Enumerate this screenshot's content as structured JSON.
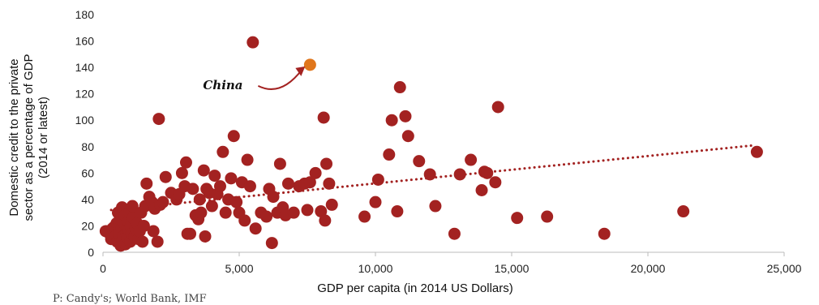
{
  "chart_data": {
    "type": "scatter",
    "xlabel": "GDP per capita (in 2014 US Dollars)",
    "ylabel_lines": [
      "Domestic credit to the private",
      "sector as a percentage of GDP",
      "(2014 or latest)"
    ],
    "xlim": [
      0,
      25000
    ],
    "ylim": [
      0,
      180
    ],
    "x_ticks": [
      0,
      5000,
      10000,
      15000,
      20000,
      25000
    ],
    "x_tick_labels": [
      "0",
      "5,000",
      "10,000",
      "15,000",
      "20,000",
      "25,000"
    ],
    "y_ticks": [
      0,
      20,
      40,
      60,
      80,
      100,
      120,
      140,
      160,
      180
    ],
    "y_tick_labels": [
      "0",
      "20",
      "40",
      "60",
      "80",
      "100",
      "120",
      "140",
      "160",
      "180"
    ],
    "grid": false,
    "colors": {
      "points": "#a32221",
      "highlight": "#e0761b",
      "trendline": "#a32221",
      "axis": "#bbbbbb"
    },
    "trendline": {
      "style": "dotted",
      "from": [
        300,
        32
      ],
      "to": [
        23900,
        81
      ]
    },
    "highlight": {
      "label": "China",
      "x": 7600,
      "y": 142
    },
    "source": "P: Candy's; World Bank, IMF",
    "points": [
      [
        100,
        16
      ],
      [
        200,
        15
      ],
      [
        300,
        10
      ],
      [
        350,
        18
      ],
      [
        400,
        19
      ],
      [
        450,
        12
      ],
      [
        500,
        22
      ],
      [
        520,
        8
      ],
      [
        550,
        30
      ],
      [
        580,
        20
      ],
      [
        600,
        14
      ],
      [
        620,
        25
      ],
      [
        650,
        5
      ],
      [
        680,
        18
      ],
      [
        700,
        34
      ],
      [
        720,
        9
      ],
      [
        750,
        12
      ],
      [
        780,
        22
      ],
      [
        800,
        28
      ],
      [
        820,
        6
      ],
      [
        850,
        15
      ],
      [
        880,
        18
      ],
      [
        900,
        11
      ],
      [
        930,
        23
      ],
      [
        950,
        17
      ],
      [
        980,
        30
      ],
      [
        1000,
        8
      ],
      [
        1020,
        20
      ],
      [
        1050,
        14
      ],
      [
        1080,
        35
      ],
      [
        1100,
        26
      ],
      [
        1150,
        12
      ],
      [
        1200,
        18
      ],
      [
        1250,
        22
      ],
      [
        1300,
        10
      ],
      [
        1350,
        16
      ],
      [
        1400,
        30
      ],
      [
        1450,
        8
      ],
      [
        1500,
        20
      ],
      [
        1550,
        35
      ],
      [
        1600,
        52
      ],
      [
        1700,
        42
      ],
      [
        1800,
        38
      ],
      [
        1850,
        16
      ],
      [
        1900,
        33
      ],
      [
        2000,
        8
      ],
      [
        2050,
        101
      ],
      [
        2100,
        36
      ],
      [
        2200,
        38
      ],
      [
        2300,
        57
      ],
      [
        2500,
        45
      ],
      [
        2700,
        40
      ],
      [
        2800,
        44
      ],
      [
        2900,
        60
      ],
      [
        3000,
        50
      ],
      [
        3050,
        68
      ],
      [
        3100,
        14
      ],
      [
        3200,
        14
      ],
      [
        3300,
        48
      ],
      [
        3400,
        28
      ],
      [
        3500,
        25
      ],
      [
        3550,
        40
      ],
      [
        3600,
        30
      ],
      [
        3700,
        62
      ],
      [
        3750,
        12
      ],
      [
        3800,
        48
      ],
      [
        3900,
        45
      ],
      [
        4000,
        35
      ],
      [
        4100,
        58
      ],
      [
        4200,
        44
      ],
      [
        4300,
        50
      ],
      [
        4400,
        76
      ],
      [
        4500,
        30
      ],
      [
        4600,
        40
      ],
      [
        4700,
        56
      ],
      [
        4800,
        88
      ],
      [
        4900,
        38
      ],
      [
        5000,
        30
      ],
      [
        5100,
        53
      ],
      [
        5200,
        24
      ],
      [
        5300,
        70
      ],
      [
        5400,
        50
      ],
      [
        5500,
        159
      ],
      [
        5600,
        18
      ],
      [
        5800,
        30
      ],
      [
        6000,
        27
      ],
      [
        6100,
        48
      ],
      [
        6200,
        7
      ],
      [
        6250,
        42
      ],
      [
        6400,
        30
      ],
      [
        6500,
        67
      ],
      [
        6600,
        34
      ],
      [
        6700,
        28
      ],
      [
        6800,
        52
      ],
      [
        7000,
        30
      ],
      [
        7200,
        50
      ],
      [
        7400,
        52
      ],
      [
        7500,
        32
      ],
      [
        7600,
        53
      ],
      [
        7800,
        60
      ],
      [
        8000,
        31
      ],
      [
        8100,
        102
      ],
      [
        8150,
        24
      ],
      [
        8200,
        67
      ],
      [
        8300,
        52
      ],
      [
        8400,
        36
      ],
      [
        9600,
        27
      ],
      [
        10000,
        38
      ],
      [
        10100,
        55
      ],
      [
        10500,
        74
      ],
      [
        10600,
        100
      ],
      [
        10800,
        31
      ],
      [
        10900,
        125
      ],
      [
        11100,
        103
      ],
      [
        11200,
        88
      ],
      [
        11600,
        69
      ],
      [
        12000,
        59
      ],
      [
        12200,
        35
      ],
      [
        12900,
        14
      ],
      [
        13100,
        59
      ],
      [
        13500,
        70
      ],
      [
        13900,
        47
      ],
      [
        14000,
        61
      ],
      [
        14100,
        60
      ],
      [
        14400,
        53
      ],
      [
        14500,
        110
      ],
      [
        15200,
        26
      ],
      [
        16300,
        27
      ],
      [
        18400,
        14
      ],
      [
        21300,
        31
      ],
      [
        24000,
        76
      ]
    ]
  }
}
